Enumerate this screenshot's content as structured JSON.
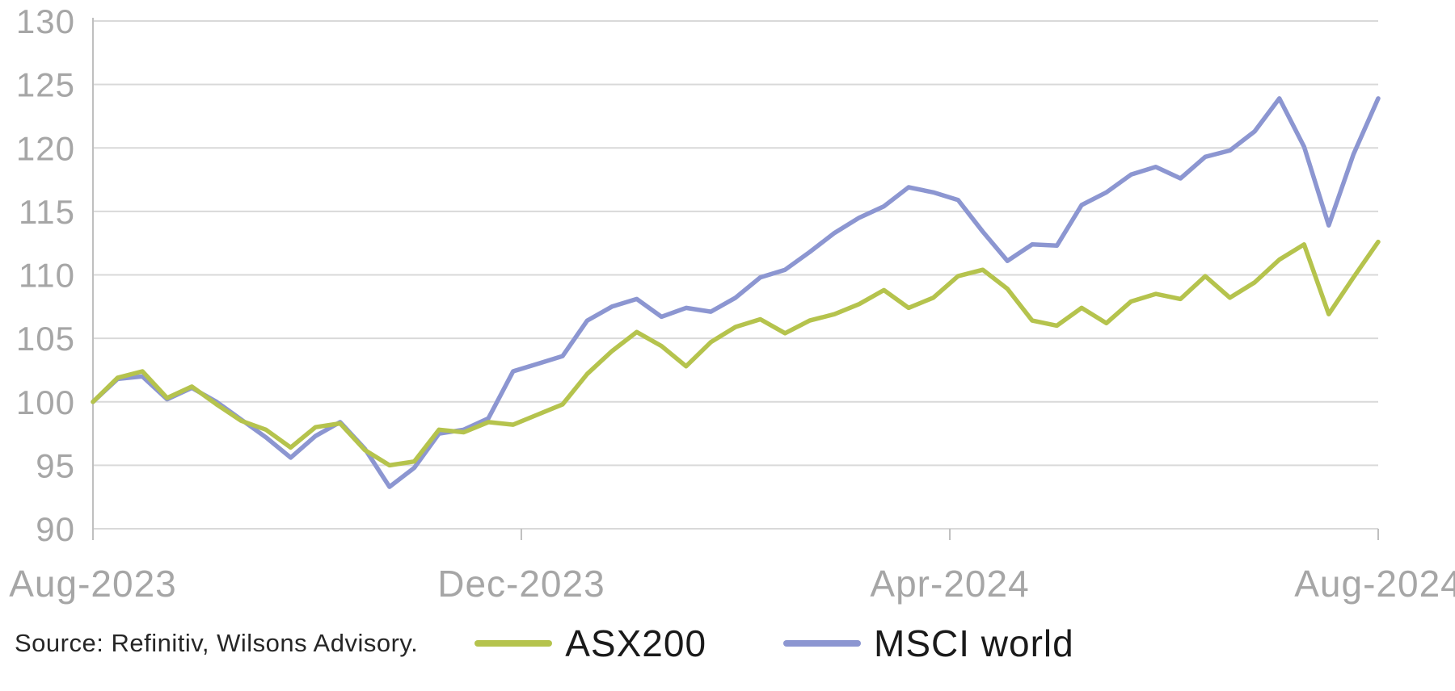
{
  "chart_data": {
    "type": "line",
    "title": "",
    "xlabel": "",
    "ylabel": "",
    "grid": true,
    "legend_position": "bottom",
    "y_axis": {
      "min": 90,
      "max": 130,
      "tick_step": 5,
      "ticks": [
        {
          "value": 90,
          "label": "90"
        },
        {
          "value": 95,
          "label": "95"
        },
        {
          "value": 100,
          "label": "100"
        },
        {
          "value": 105,
          "label": "105"
        },
        {
          "value": 110,
          "label": "110"
        },
        {
          "value": 115,
          "label": "115"
        },
        {
          "value": 120,
          "label": "120"
        },
        {
          "value": 125,
          "label": "125"
        },
        {
          "value": 130,
          "label": "130"
        }
      ]
    },
    "x_axis": {
      "ticks": [
        {
          "fraction": 0,
          "label": "Aug-2023"
        },
        {
          "fraction": 0.3333,
          "label": "Dec-2023"
        },
        {
          "fraction": 0.6667,
          "label": "Apr-2024"
        },
        {
          "fraction": 1,
          "label": "Aug-2024"
        }
      ]
    },
    "series": [
      {
        "name": "ASX200",
        "color": "#b5c34d",
        "values": [
          100.0,
          101.9,
          102.4,
          100.3,
          101.2,
          99.8,
          98.5,
          97.8,
          96.4,
          98.0,
          98.3,
          96.2,
          95.0,
          95.3,
          97.8,
          97.6,
          98.4,
          98.2,
          99.0,
          99.8,
          102.2,
          104.0,
          105.5,
          104.4,
          102.8,
          104.7,
          105.9,
          106.5,
          105.4,
          106.4,
          106.9,
          107.7,
          108.8,
          107.4,
          108.2,
          109.9,
          110.4,
          108.9,
          106.4,
          106.0,
          107.4,
          106.2,
          107.9,
          108.5,
          108.1,
          109.9,
          108.2,
          109.4,
          111.2,
          112.4,
          106.9,
          109.8,
          112.6
        ]
      },
      {
        "name": "MSCI world",
        "color": "#8c96d1",
        "values": [
          100.0,
          101.8,
          102.0,
          100.2,
          101.1,
          100.0,
          98.6,
          97.2,
          95.6,
          97.3,
          98.4,
          96.3,
          93.3,
          94.8,
          97.5,
          97.8,
          98.7,
          102.4,
          103.0,
          103.6,
          106.4,
          107.5,
          108.1,
          106.7,
          107.4,
          107.1,
          108.2,
          109.8,
          110.4,
          111.8,
          113.3,
          114.5,
          115.4,
          116.9,
          116.5,
          115.9,
          113.4,
          111.1,
          112.4,
          112.3,
          115.5,
          116.5,
          117.9,
          118.5,
          117.6,
          119.3,
          119.8,
          121.3,
          123.9,
          120.1,
          113.9,
          119.5,
          123.9
        ]
      }
    ],
    "colors": {
      "grid": "#d9d9d9",
      "axis": "#bfbfbf",
      "tick_label": "#a6a6a6"
    }
  },
  "source": {
    "text": "Source: Refinitiv, Wilsons Advisory."
  }
}
